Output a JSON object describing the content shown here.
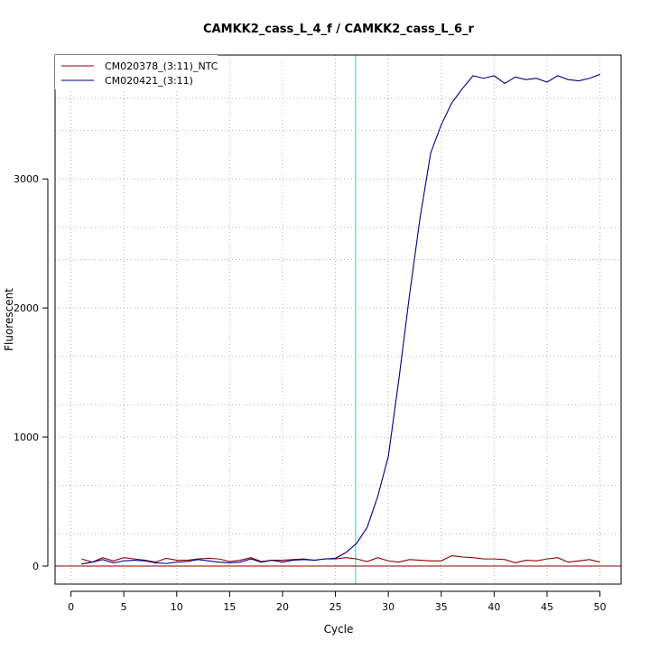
{
  "chart_data": {
    "type": "line",
    "title": "CAMKK2_cass_L_4_f / CAMKK2_cass_L_6_r",
    "xlabel": "Cycle",
    "ylabel": "Fluorescent",
    "xlim": [
      -1.5,
      52
    ],
    "ylim": [
      -140,
      3960
    ],
    "x_ticks": [
      0,
      5,
      10,
      15,
      20,
      25,
      30,
      35,
      40,
      45,
      50
    ],
    "y_ticks": [
      0,
      1000,
      2000,
      3000
    ],
    "grid": true,
    "grid_x": [
      0,
      5,
      10,
      15,
      20,
      25,
      30,
      35,
      40,
      45,
      50
    ],
    "grid_y": [
      0,
      250,
      625,
      1000,
      1250,
      1625,
      2000,
      2375,
      2625,
      3000,
      3375,
      3625
    ],
    "threshold_cycle": 26.9,
    "threshold_color": "#40e0d0",
    "baseline": {
      "y": 0,
      "color": "#8b0000"
    },
    "legend_position": "top-left",
    "x": [
      1,
      2,
      3,
      4,
      5,
      6,
      7,
      8,
      9,
      10,
      11,
      12,
      13,
      14,
      15,
      16,
      17,
      18,
      19,
      20,
      21,
      22,
      23,
      24,
      25,
      26,
      27,
      28,
      29,
      30,
      31,
      32,
      33,
      34,
      35,
      36,
      37,
      38,
      39,
      40,
      41,
      42,
      43,
      44,
      45,
      46,
      47,
      48,
      49,
      50
    ],
    "series": [
      {
        "name": "CM020378_(3:11)_NTC",
        "color": "#8b0000",
        "values": [
          55,
          30,
          65,
          40,
          65,
          55,
          45,
          30,
          60,
          45,
          45,
          55,
          60,
          55,
          35,
          45,
          65,
          35,
          45,
          45,
          50,
          55,
          45,
          55,
          55,
          65,
          55,
          35,
          65,
          40,
          30,
          50,
          45,
          40,
          40,
          80,
          70,
          65,
          55,
          55,
          50,
          25,
          45,
          40,
          55,
          65,
          30,
          40,
          50,
          30
        ]
      },
      {
        "name": "CM020421_(3:11)",
        "color": "#000080",
        "values": [
          15,
          30,
          50,
          25,
          40,
          45,
          40,
          25,
          20,
          30,
          35,
          50,
          40,
          30,
          25,
          30,
          55,
          30,
          45,
          30,
          45,
          50,
          45,
          55,
          60,
          105,
          175,
          300,
          540,
          850,
          1450,
          2100,
          2700,
          3200,
          3420,
          3590,
          3700,
          3800,
          3780,
          3800,
          3740,
          3790,
          3770,
          3780,
          3750,
          3800,
          3770,
          3760,
          3780,
          3810
        ]
      }
    ]
  }
}
